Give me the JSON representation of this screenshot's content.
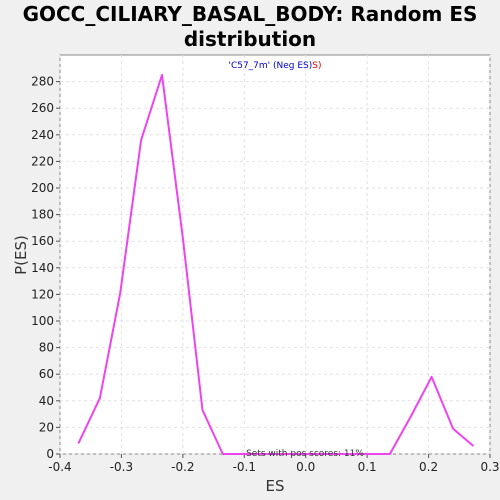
{
  "chart_data": {
    "type": "line",
    "title_line1": "GOCC_CILIARY_BASAL_BODY: Random ES",
    "title_line2": "distribution",
    "xlabel": "ES",
    "ylabel": "P(ES)",
    "xlim": [
      -0.4,
      0.3
    ],
    "ylim": [
      0,
      300
    ],
    "x_ticks": [
      "-0.4",
      "-0.3",
      "-0.2",
      "-0.1",
      "0.0",
      "0.1",
      "0.2",
      "0.3"
    ],
    "y_ticks": [
      "0",
      "20",
      "40",
      "60",
      "80",
      "100",
      "120",
      "140",
      "160",
      "180",
      "200",
      "220",
      "240",
      "260",
      "280"
    ],
    "grid": true,
    "legend_part1": "'C57_7m' (Neg ES)",
    "legend_part2": "S)",
    "annotation": "Sets with pos scores: 11%",
    "colors": {
      "line": "#ee44ee",
      "legend_neg": "#0000cc",
      "legend_s": "#dd0000",
      "plot_bg": "#ffffff",
      "grid": "#e2e2e2"
    },
    "series": [
      {
        "x": [
          -0.37,
          -0.335,
          -0.302,
          -0.268,
          -0.234,
          -0.2,
          -0.168,
          -0.135,
          -0.1,
          -0.065,
          -0.03,
          0.0,
          0.035,
          0.07,
          0.103,
          0.137,
          0.172,
          0.205,
          0.24,
          0.273
        ],
        "y": [
          8,
          42,
          121,
          236,
          285,
          162,
          33,
          0,
          0,
          0,
          0,
          0,
          0,
          0,
          0,
          0,
          29,
          58,
          19,
          6
        ]
      }
    ]
  }
}
